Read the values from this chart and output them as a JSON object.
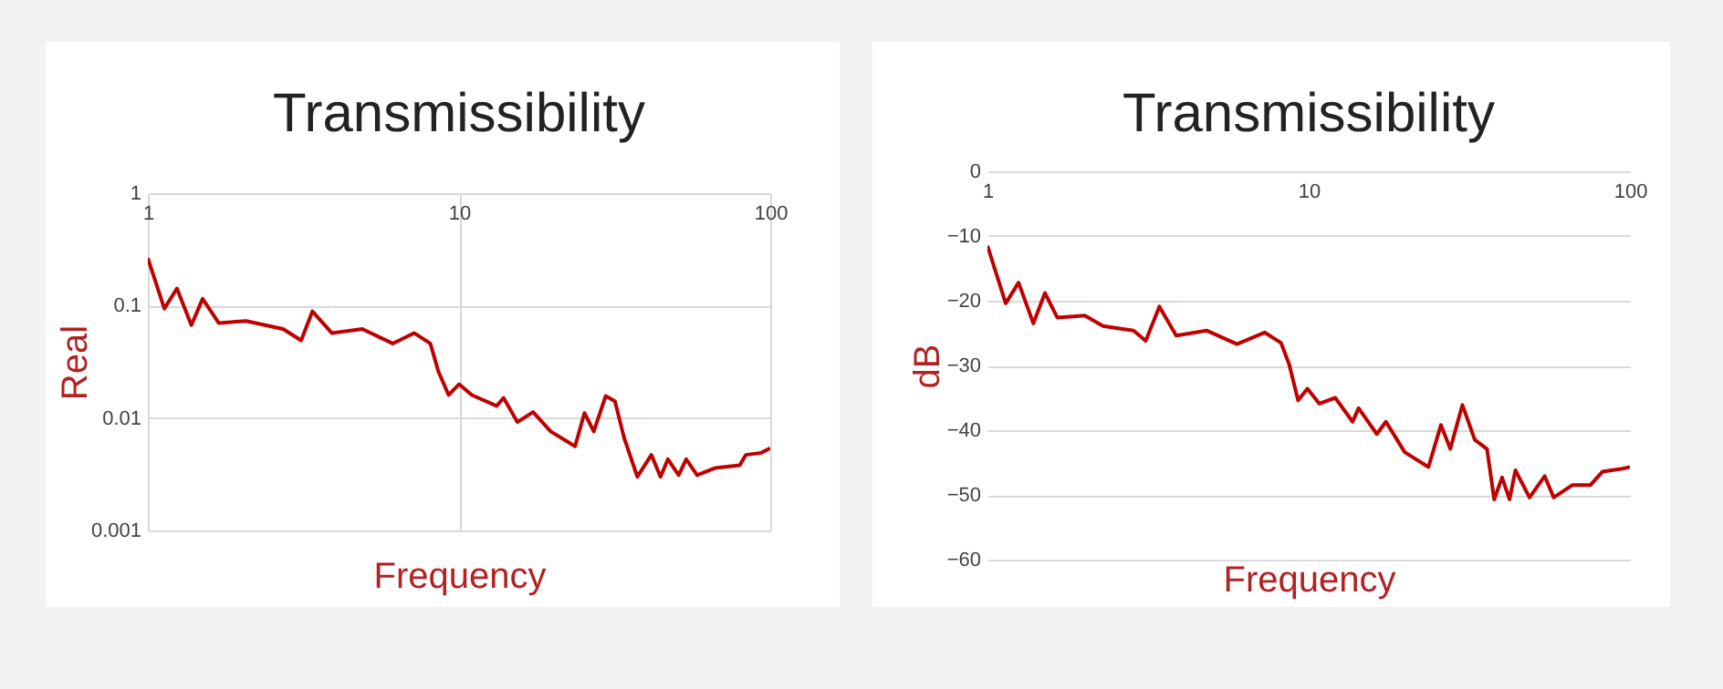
{
  "chart_data": [
    {
      "type": "line",
      "title": "Transmissibility",
      "xlabel": "Frequency",
      "ylabel": "Real",
      "log": "xy",
      "grid": true,
      "xlim": [
        1,
        100
      ],
      "ylim": [
        0.001,
        1
      ],
      "xticks": [
        1,
        10,
        100
      ],
      "yticks": [
        0.001,
        0.01,
        0.1,
        1
      ],
      "x": [
        1,
        1.13,
        1.24,
        1.38,
        1.5,
        1.69,
        2.07,
        2.72,
        3.11,
        3.38,
        3.9,
        4.89,
        6.12,
        7.17,
        8.09,
        8.58,
        9.26,
        10,
        11,
        13.2,
        13.9,
        15.4,
        17.3,
        19.7,
        23.6,
        25.3,
        27.1,
        29.6,
        31.7,
        33.9,
        37.4,
        41.5,
        44.4,
        46.9,
        50.8,
        53.7,
        58.2,
        66.7,
        79.8,
        83.5,
        93.5,
        100
      ],
      "series": [
        {
          "color": "#c00000",
          "values": [
            0.264,
            0.094,
            0.142,
            0.067,
            0.115,
            0.07,
            0.073,
            0.062,
            0.049,
            0.089,
            0.057,
            0.062,
            0.046,
            0.057,
            0.046,
            0.026,
            0.016,
            0.02,
            0.016,
            0.0128,
            0.0151,
            0.0092,
            0.0113,
            0.0076,
            0.0056,
            0.0111,
            0.0076,
            0.0157,
            0.0141,
            0.0067,
            0.003,
            0.0047,
            0.003,
            0.0043,
            0.0031,
            0.0043,
            0.0031,
            0.0036,
            0.0038,
            0.0047,
            0.0049,
            0.0054
          ]
        }
      ]
    },
    {
      "type": "line",
      "title": "Transmissibility",
      "xlabel": "Frequency",
      "ylabel": "dB",
      "log": "x",
      "grid": "y",
      "xlim": [
        1,
        100
      ],
      "ylim": [
        -60,
        0
      ],
      "xticks": [
        1,
        10,
        100
      ],
      "yticks": [
        -60,
        -50,
        -40,
        -30,
        -20,
        -10,
        0
      ],
      "x": [
        1,
        1.14,
        1.25,
        1.39,
        1.51,
        1.65,
        2.01,
        2.29,
        2.85,
        3.11,
        3.43,
        3.87,
        4.81,
        5.98,
        7.29,
        8.2,
        8.69,
        9.27,
        9.91,
        10.8,
        12.1,
        13.7,
        14.3,
        16.3,
        17.4,
        19.9,
        23.6,
        25.8,
        27.6,
        30.1,
        32.9,
        35.9,
        37.8,
        40,
        42.2,
        44,
        48.7,
        54.3,
        57.9,
        66.1,
        75.3,
        82.2,
        93.7,
        100
      ],
      "series": [
        {
          "color": "#c00000",
          "values": [
            -11.5,
            -20.4,
            -17.2,
            -23.5,
            -18.8,
            -22.6,
            -22.3,
            -23.9,
            -24.6,
            -26.2,
            -20.9,
            -25.4,
            -24.6,
            -26.7,
            -24.9,
            -26.5,
            -29.8,
            -35.4,
            -33.6,
            -35.9,
            -35,
            -38.7,
            -36.6,
            -40.6,
            -38.7,
            -43.4,
            -45.7,
            -39.2,
            -42.9,
            -36.1,
            -41.5,
            -42.9,
            -50.7,
            -47.3,
            -50.7,
            -46.2,
            -50.4,
            -47.1,
            -50.4,
            -48.5,
            -48.5,
            -46.4,
            -46,
            -45.7
          ]
        }
      ]
    }
  ]
}
